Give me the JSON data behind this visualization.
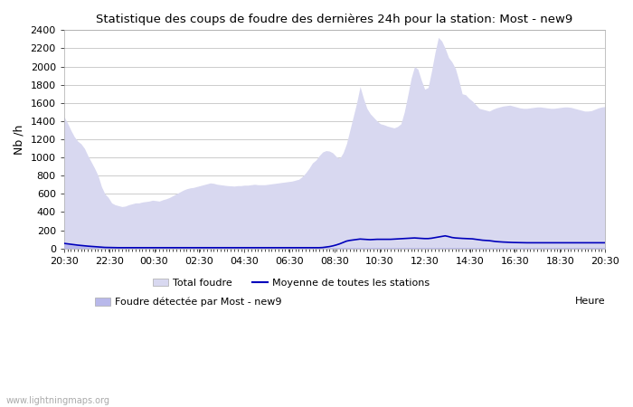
{
  "title": "Statistique des coups de foudre des dernières 24h pour la station: Most - new9",
  "xlabel": "Heure",
  "ylabel": "Nb /h",
  "watermark": "www.lightningmaps.org",
  "xlim_labels": [
    "20:30",
    "22:30",
    "00:30",
    "02:30",
    "04:30",
    "06:30",
    "08:30",
    "10:30",
    "12:30",
    "14:30",
    "16:30",
    "18:30",
    "20:30"
  ],
  "ylim": [
    0,
    2400
  ],
  "yticks": [
    0,
    200,
    400,
    600,
    800,
    1000,
    1200,
    1400,
    1600,
    1800,
    2000,
    2200,
    2400
  ],
  "bg_color": "#ffffff",
  "plot_bg_color": "#ffffff",
  "grid_color": "#cccccc",
  "total_foudre_color": "#d8d8f0",
  "detected_color": "#b8b8ea",
  "mean_color": "#0000bb",
  "legend_total_label": "Total foudre",
  "legend_mean_label": "Moyenne de toutes les stations",
  "legend_detected_label": "Foudre détectée par Most - new9",
  "total_foudre": [
    1450,
    1380,
    1300,
    1230,
    1180,
    1150,
    1100,
    1020,
    950,
    880,
    800,
    680,
    600,
    560,
    500,
    480,
    470,
    460,
    465,
    480,
    490,
    500,
    500,
    510,
    515,
    520,
    530,
    525,
    520,
    535,
    545,
    560,
    580,
    600,
    620,
    640,
    655,
    665,
    670,
    680,
    690,
    700,
    710,
    720,
    715,
    705,
    700,
    695,
    690,
    688,
    685,
    690,
    690,
    695,
    695,
    700,
    705,
    700,
    700,
    700,
    705,
    710,
    715,
    720,
    725,
    730,
    735,
    740,
    750,
    760,
    790,
    830,
    880,
    940,
    970,
    1020,
    1060,
    1075,
    1070,
    1050,
    1010,
    990,
    1050,
    1150,
    1300,
    1450,
    1600,
    1780,
    1650,
    1540,
    1480,
    1440,
    1400,
    1370,
    1360,
    1345,
    1335,
    1325,
    1340,
    1370,
    1500,
    1680,
    1870,
    2000,
    1970,
    1850,
    1750,
    1770,
    1950,
    2150,
    2320,
    2280,
    2200,
    2100,
    2050,
    1980,
    1850,
    1700,
    1690,
    1650,
    1620,
    1580,
    1540,
    1530,
    1520,
    1510,
    1530,
    1545,
    1555,
    1565,
    1570,
    1575,
    1565,
    1555,
    1545,
    1540,
    1540,
    1545,
    1550,
    1555,
    1555,
    1550,
    1545,
    1540,
    1540,
    1545,
    1550,
    1555,
    1555,
    1550,
    1540,
    1530,
    1520,
    1510,
    1510,
    1515,
    1530,
    1545,
    1555,
    1560
  ],
  "detected": [
    50,
    45,
    40,
    38,
    35,
    32,
    28,
    25,
    22,
    18,
    16,
    14,
    12,
    11,
    10,
    10,
    10,
    10,
    10,
    10,
    10,
    10,
    10,
    10,
    10,
    10,
    10,
    10,
    10,
    10,
    10,
    10,
    10,
    10,
    10,
    10,
    10,
    10,
    10,
    10,
    10,
    10,
    10,
    10,
    10,
    10,
    10,
    10,
    10,
    10,
    10,
    10,
    10,
    10,
    10,
    10,
    10,
    10,
    10,
    10,
    10,
    10,
    10,
    10,
    10,
    10,
    10,
    10,
    10,
    10,
    10,
    10,
    10,
    10,
    10,
    10,
    10,
    10,
    10,
    10,
    10,
    10,
    10,
    10,
    10,
    10,
    10,
    10,
    10,
    10,
    10,
    10,
    10,
    10,
    10,
    10,
    10,
    10,
    10,
    10,
    10,
    10,
    10,
    10,
    10,
    10,
    10,
    10,
    10,
    10,
    10,
    10,
    10,
    10,
    10,
    10,
    10,
    10,
    10,
    10,
    10,
    10,
    10,
    10,
    10,
    10,
    10,
    10,
    10,
    10,
    10,
    10,
    10,
    10,
    10,
    10,
    10,
    10,
    10,
    10,
    10,
    10,
    10,
    10,
    10,
    10,
    10,
    10,
    10,
    10,
    10,
    10,
    10,
    10,
    10,
    10,
    10,
    10,
    10,
    10
  ],
  "mean_line": [
    55,
    50,
    45,
    40,
    36,
    32,
    28,
    25,
    22,
    18,
    15,
    13,
    11,
    10,
    9,
    8,
    8,
    8,
    8,
    8,
    8,
    8,
    8,
    8,
    8,
    8,
    8,
    8,
    8,
    8,
    8,
    8,
    8,
    8,
    8,
    8,
    8,
    8,
    8,
    8,
    8,
    8,
    8,
    8,
    8,
    8,
    8,
    8,
    8,
    8,
    8,
    8,
    8,
    8,
    8,
    8,
    8,
    8,
    8,
    8,
    8,
    8,
    8,
    8,
    8,
    8,
    8,
    8,
    8,
    8,
    8,
    8,
    8,
    8,
    8,
    8,
    10,
    15,
    20,
    28,
    38,
    50,
    65,
    80,
    88,
    93,
    98,
    103,
    100,
    98,
    96,
    98,
    100,
    100,
    100,
    100,
    100,
    102,
    103,
    105,
    108,
    110,
    112,
    115,
    112,
    110,
    108,
    108,
    112,
    118,
    125,
    132,
    138,
    130,
    120,
    115,
    112,
    110,
    108,
    106,
    105,
    100,
    95,
    90,
    88,
    85,
    80,
    75,
    72,
    70,
    68,
    66,
    65,
    64,
    63,
    62,
    62,
    62,
    62,
    62,
    62,
    62,
    62,
    62,
    62,
    62,
    62,
    62,
    62,
    62,
    62,
    62,
    62,
    62,
    62,
    62,
    62,
    62,
    62,
    62
  ]
}
